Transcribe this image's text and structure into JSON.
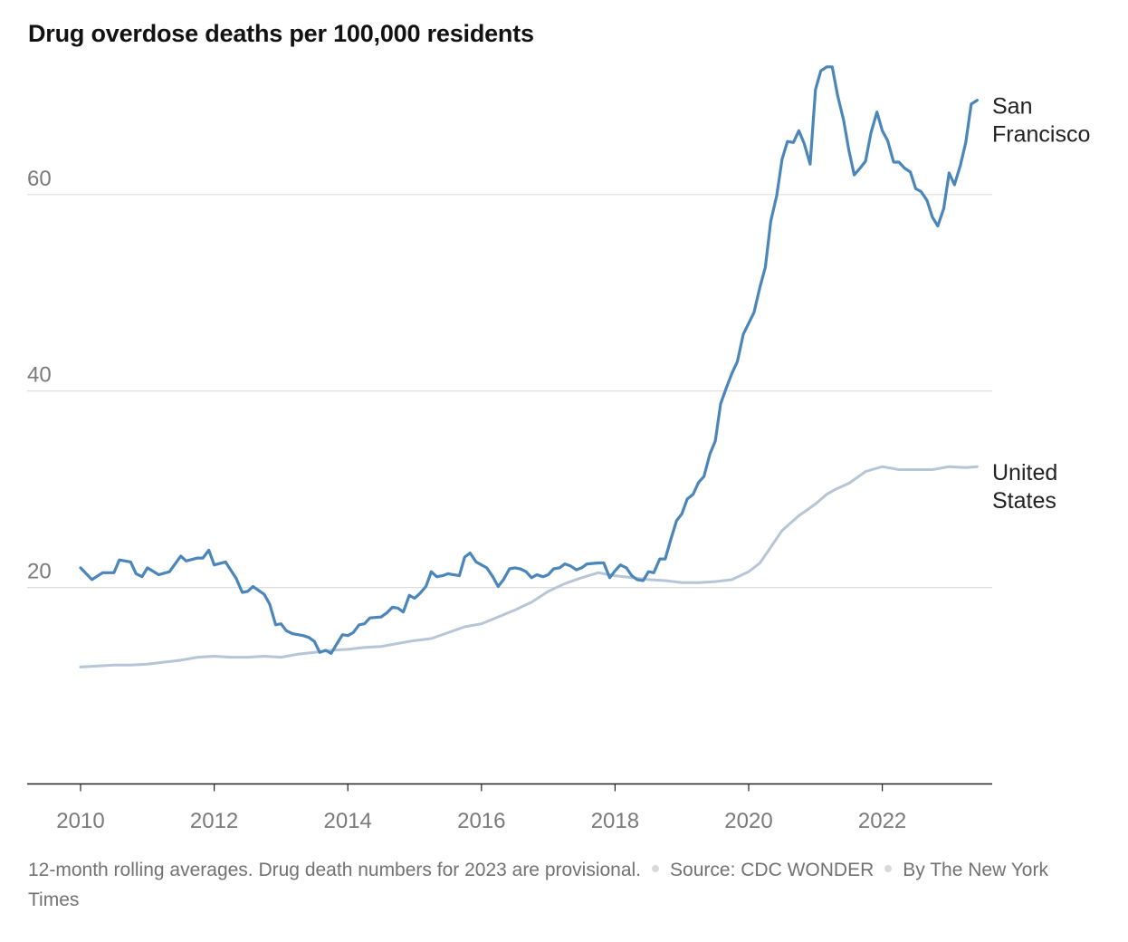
{
  "title": "Drug overdose deaths per 100,000 residents",
  "colors": {
    "san_francisco": "#4a86ba",
    "united_states": "#b7c6d6",
    "grid": "#dddddd",
    "axis": "#222222",
    "tick_text": "#7a7a7a",
    "label_text": "#222222"
  },
  "footer": {
    "note": "12-month rolling averages. Drug death numbers for 2023 are provisional.",
    "source": "Source: CDC WONDER",
    "credit": "By The New York Times"
  },
  "chart_data": {
    "type": "line",
    "title": "Drug overdose deaths per 100,000 residents",
    "xlabel": "",
    "ylabel": "",
    "xlim": [
      2010,
      2023.5
    ],
    "ylim": [
      0,
      70
    ],
    "x_ticks": [
      2010,
      2012,
      2014,
      2016,
      2018,
      2020,
      2022
    ],
    "x_tick_labels": [
      "2010",
      "2012",
      "2014",
      "2016",
      "2018",
      "2020",
      "2022"
    ],
    "y_ticks": [
      20,
      40,
      60
    ],
    "y_tick_labels": [
      "20",
      "40",
      "60"
    ],
    "grid": "horizontal",
    "legend": "direct labels at line ends",
    "series": [
      {
        "name": "San Francisco",
        "label_lines": [
          "San",
          "Francisco"
        ],
        "color": "#4a86ba",
        "points": [
          [
            2010.0,
            22.0
          ],
          [
            2010.17,
            20.8
          ],
          [
            2010.33,
            21.5
          ],
          [
            2010.5,
            21.5
          ],
          [
            2010.58,
            22.8
          ],
          [
            2010.75,
            22.6
          ],
          [
            2010.83,
            21.4
          ],
          [
            2010.92,
            21.1
          ],
          [
            2011.0,
            22.0
          ],
          [
            2011.17,
            21.3
          ],
          [
            2011.33,
            21.6
          ],
          [
            2011.5,
            23.2
          ],
          [
            2011.58,
            22.7
          ],
          [
            2011.75,
            23.0
          ],
          [
            2011.83,
            23.0
          ],
          [
            2011.92,
            23.8
          ],
          [
            2012.0,
            22.3
          ],
          [
            2012.17,
            22.6
          ],
          [
            2012.33,
            20.9
          ],
          [
            2012.42,
            19.5
          ],
          [
            2012.5,
            19.6
          ],
          [
            2012.58,
            20.1
          ],
          [
            2012.75,
            19.3
          ],
          [
            2012.83,
            18.3
          ],
          [
            2012.92,
            16.2
          ],
          [
            2013.0,
            16.3
          ],
          [
            2013.08,
            15.6
          ],
          [
            2013.17,
            15.3
          ],
          [
            2013.33,
            15.1
          ],
          [
            2013.42,
            14.9
          ],
          [
            2013.5,
            14.5
          ],
          [
            2013.58,
            13.4
          ],
          [
            2013.67,
            13.6
          ],
          [
            2013.75,
            13.3
          ],
          [
            2013.83,
            14.2
          ],
          [
            2013.92,
            15.2
          ],
          [
            2014.0,
            15.1
          ],
          [
            2014.08,
            15.4
          ],
          [
            2014.17,
            16.2
          ],
          [
            2014.25,
            16.3
          ],
          [
            2014.33,
            16.9
          ],
          [
            2014.5,
            17.0
          ],
          [
            2014.58,
            17.4
          ],
          [
            2014.67,
            18.0
          ],
          [
            2014.75,
            17.9
          ],
          [
            2014.83,
            17.5
          ],
          [
            2014.92,
            19.2
          ],
          [
            2015.0,
            18.9
          ],
          [
            2015.08,
            19.4
          ],
          [
            2015.17,
            20.1
          ],
          [
            2015.25,
            21.6
          ],
          [
            2015.33,
            21.1
          ],
          [
            2015.42,
            21.2
          ],
          [
            2015.5,
            21.4
          ],
          [
            2015.67,
            21.2
          ],
          [
            2015.75,
            23.1
          ],
          [
            2015.83,
            23.5
          ],
          [
            2015.92,
            22.6
          ],
          [
            2016.0,
            22.3
          ],
          [
            2016.08,
            22.0
          ],
          [
            2016.17,
            21.1
          ],
          [
            2016.25,
            20.1
          ],
          [
            2016.33,
            20.8
          ],
          [
            2016.42,
            21.9
          ],
          [
            2016.5,
            22.0
          ],
          [
            2016.58,
            21.9
          ],
          [
            2016.67,
            21.6
          ],
          [
            2016.75,
            21.0
          ],
          [
            2016.83,
            21.3
          ],
          [
            2016.92,
            21.1
          ],
          [
            2017.0,
            21.3
          ],
          [
            2017.08,
            21.9
          ],
          [
            2017.17,
            22.0
          ],
          [
            2017.25,
            22.4
          ],
          [
            2017.33,
            22.2
          ],
          [
            2017.42,
            21.8
          ],
          [
            2017.5,
            22.0
          ],
          [
            2017.58,
            22.4
          ],
          [
            2017.75,
            22.5
          ],
          [
            2017.83,
            22.5
          ],
          [
            2017.92,
            21.0
          ],
          [
            2018.0,
            21.7
          ],
          [
            2018.08,
            22.3
          ],
          [
            2018.17,
            22.0
          ],
          [
            2018.25,
            21.2
          ],
          [
            2018.33,
            20.8
          ],
          [
            2018.42,
            20.7
          ],
          [
            2018.5,
            21.6
          ],
          [
            2018.58,
            21.5
          ],
          [
            2018.67,
            22.9
          ],
          [
            2018.75,
            22.9
          ],
          [
            2018.83,
            24.8
          ],
          [
            2018.92,
            26.8
          ],
          [
            2019.0,
            27.5
          ],
          [
            2019.08,
            29.0
          ],
          [
            2019.17,
            29.5
          ],
          [
            2019.25,
            30.7
          ],
          [
            2019.33,
            31.3
          ],
          [
            2019.42,
            33.6
          ],
          [
            2019.5,
            34.9
          ],
          [
            2019.58,
            38.7
          ],
          [
            2019.67,
            40.4
          ],
          [
            2019.75,
            41.8
          ],
          [
            2019.83,
            43.0
          ],
          [
            2019.92,
            45.8
          ],
          [
            2020.0,
            46.9
          ],
          [
            2020.08,
            48.0
          ],
          [
            2020.17,
            50.6
          ],
          [
            2020.25,
            52.6
          ],
          [
            2020.33,
            57.3
          ],
          [
            2020.42,
            59.9
          ],
          [
            2020.5,
            63.6
          ],
          [
            2020.58,
            65.4
          ],
          [
            2020.67,
            65.3
          ],
          [
            2020.75,
            66.5
          ],
          [
            2020.83,
            65.2
          ],
          [
            2020.92,
            63.1
          ],
          [
            2021.0,
            70.7
          ],
          [
            2021.08,
            72.6
          ],
          [
            2021.17,
            73.0
          ],
          [
            2021.25,
            73.0
          ],
          [
            2021.33,
            70.1
          ],
          [
            2021.42,
            67.6
          ],
          [
            2021.5,
            64.5
          ],
          [
            2021.58,
            62.0
          ],
          [
            2021.67,
            62.7
          ],
          [
            2021.75,
            63.4
          ],
          [
            2021.83,
            66.3
          ],
          [
            2021.92,
            68.4
          ],
          [
            2022.0,
            66.5
          ],
          [
            2022.08,
            65.5
          ],
          [
            2022.17,
            63.3
          ],
          [
            2022.25,
            63.3
          ],
          [
            2022.33,
            62.7
          ],
          [
            2022.42,
            62.3
          ],
          [
            2022.5,
            60.6
          ],
          [
            2022.58,
            60.3
          ],
          [
            2022.67,
            59.4
          ],
          [
            2022.75,
            57.7
          ],
          [
            2022.83,
            56.8
          ],
          [
            2022.92,
            58.6
          ],
          [
            2023.0,
            62.2
          ],
          [
            2023.08,
            61.0
          ],
          [
            2023.17,
            63.0
          ],
          [
            2023.25,
            65.3
          ],
          [
            2023.33,
            69.2
          ],
          [
            2023.42,
            69.6
          ]
        ]
      },
      {
        "name": "United States",
        "label_lines": [
          "United",
          "States"
        ],
        "color": "#b7c6d6",
        "points": [
          [
            2010.0,
            11.9
          ],
          [
            2010.5,
            12.1
          ],
          [
            2010.75,
            12.1
          ],
          [
            2011.0,
            12.2
          ],
          [
            2011.5,
            12.6
          ],
          [
            2011.75,
            12.9
          ],
          [
            2012.0,
            13.0
          ],
          [
            2012.25,
            12.9
          ],
          [
            2012.5,
            12.9
          ],
          [
            2012.75,
            13.0
          ],
          [
            2013.0,
            12.9
          ],
          [
            2013.25,
            13.2
          ],
          [
            2013.5,
            13.4
          ],
          [
            2013.75,
            13.6
          ],
          [
            2014.0,
            13.7
          ],
          [
            2014.25,
            13.9
          ],
          [
            2014.5,
            14.0
          ],
          [
            2014.75,
            14.3
          ],
          [
            2015.0,
            14.6
          ],
          [
            2015.25,
            14.8
          ],
          [
            2015.5,
            15.4
          ],
          [
            2015.75,
            16.0
          ],
          [
            2016.0,
            16.3
          ],
          [
            2016.25,
            17.0
          ],
          [
            2016.5,
            17.7
          ],
          [
            2016.75,
            18.5
          ],
          [
            2017.0,
            19.6
          ],
          [
            2017.25,
            20.4
          ],
          [
            2017.5,
            21.0
          ],
          [
            2017.75,
            21.5
          ],
          [
            2018.0,
            21.2
          ],
          [
            2018.25,
            21.0
          ],
          [
            2018.5,
            20.8
          ],
          [
            2018.75,
            20.7
          ],
          [
            2019.0,
            20.5
          ],
          [
            2019.25,
            20.5
          ],
          [
            2019.5,
            20.6
          ],
          [
            2019.75,
            20.8
          ],
          [
            2020.0,
            21.6
          ],
          [
            2020.17,
            22.5
          ],
          [
            2020.33,
            24.1
          ],
          [
            2020.5,
            25.8
          ],
          [
            2020.75,
            27.3
          ],
          [
            2021.0,
            28.5
          ],
          [
            2021.17,
            29.5
          ],
          [
            2021.33,
            30.1
          ],
          [
            2021.5,
            30.6
          ],
          [
            2021.75,
            31.8
          ],
          [
            2022.0,
            32.3
          ],
          [
            2022.25,
            32.0
          ],
          [
            2022.5,
            32.0
          ],
          [
            2022.75,
            32.0
          ],
          [
            2023.0,
            32.3
          ],
          [
            2023.25,
            32.2
          ],
          [
            2023.42,
            32.3
          ]
        ]
      }
    ]
  }
}
